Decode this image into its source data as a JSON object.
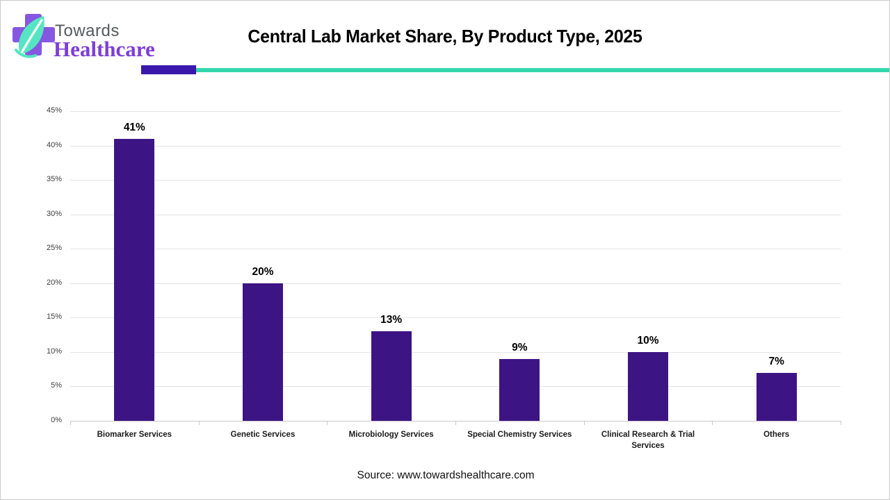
{
  "header": {
    "logo_line1": "Towards",
    "logo_line2": "Healthcare",
    "title": "Central Lab Market Share, By Product Type, 2025"
  },
  "colors": {
    "bar": "#3d1484",
    "divider_purple": "#3a18ae",
    "divider_teal": "#33d6ab",
    "logo_cross": "#8657e0",
    "logo_leaf": "#55e5c2"
  },
  "chart_data": {
    "type": "bar",
    "title": "Central Lab Market Share, By Product Type, 2025",
    "categories": [
      "Biomarker Services",
      "Genetic Services",
      "Microbiology Services",
      "Special Chemistry Services",
      "Clinical Research & Trial Services",
      "Others"
    ],
    "values": [
      41,
      20,
      13,
      9,
      10,
      7
    ],
    "value_labels": [
      "41%",
      "20%",
      "13%",
      "9%",
      "10%",
      "7%"
    ],
    "xlabel": "",
    "ylabel": "",
    "ylim": [
      0,
      45
    ],
    "ytick_step": 5,
    "ytick_labels": [
      "0%",
      "5%",
      "10%",
      "15%",
      "20%",
      "25%",
      "30%",
      "35%",
      "40%",
      "45%"
    ],
    "grid": true,
    "legend": "none",
    "bar_color": "#3d1484"
  },
  "footer": {
    "source": "Source: www.towardshealthcare.com"
  }
}
